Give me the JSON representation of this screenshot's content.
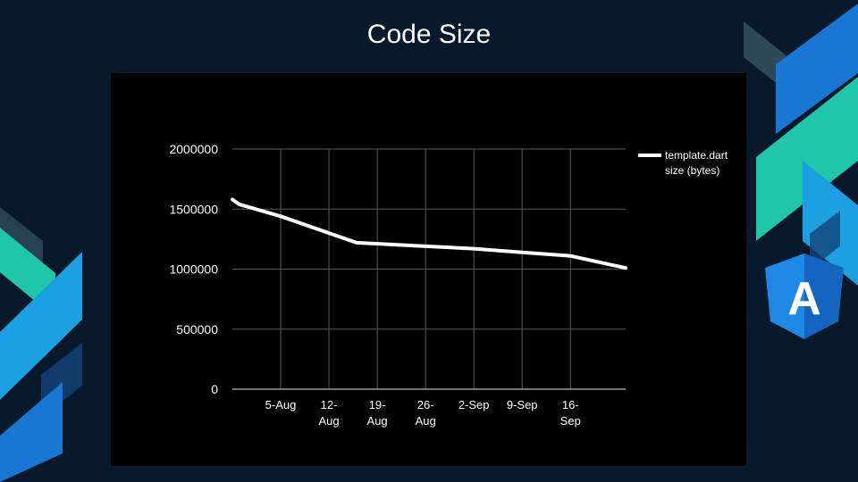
{
  "slide": {
    "title": "Code Size",
    "logo_letter": "A"
  },
  "colors": {
    "background": "#07192a",
    "chart_background": "#000000",
    "line": "#ffffff",
    "grid": "#5a5a5a",
    "accent_blue": "#1976d2",
    "accent_teal": "#1fc6a9",
    "angular_blue": "#1e88e5"
  },
  "chart_data": {
    "type": "line",
    "title": "",
    "xlabel": "",
    "ylabel": "",
    "ylim": [
      0,
      2000000
    ],
    "yticks": [
      0,
      500000,
      1000000,
      1500000,
      2000000
    ],
    "ytick_labels": [
      "0",
      "500000",
      "1000000",
      "1500000",
      "2000000"
    ],
    "xlim": [
      "2017-07-29",
      "2017-09-24"
    ],
    "xticks": [
      {
        "date": "2017-08-05",
        "label": [
          "5-Aug"
        ]
      },
      {
        "date": "2017-08-12",
        "label": [
          "12-",
          "Aug"
        ]
      },
      {
        "date": "2017-08-19",
        "label": [
          "19-",
          "Aug"
        ]
      },
      {
        "date": "2017-08-26",
        "label": [
          "26-",
          "Aug"
        ]
      },
      {
        "date": "2017-09-02",
        "label": [
          "2-Sep"
        ]
      },
      {
        "date": "2017-09-09",
        "label": [
          "9-Sep"
        ]
      },
      {
        "date": "2017-09-16",
        "label": [
          "16-",
          "Sep"
        ]
      }
    ],
    "grid": true,
    "legend_position": "right",
    "series": [
      {
        "name": "template.dart size (bytes)",
        "legend_lines": [
          "template.dart",
          "size (bytes)"
        ],
        "points": [
          {
            "x": "2017-07-29",
            "y": 1580000
          },
          {
            "x": "2017-07-30",
            "y": 1540000
          },
          {
            "x": "2017-08-05",
            "y": 1440000
          },
          {
            "x": "2017-08-16",
            "y": 1220000
          },
          {
            "x": "2017-08-26",
            "y": 1190000
          },
          {
            "x": "2017-09-02",
            "y": 1170000
          },
          {
            "x": "2017-09-09",
            "y": 1140000
          },
          {
            "x": "2017-09-16",
            "y": 1110000
          },
          {
            "x": "2017-09-24",
            "y": 1010000
          }
        ]
      }
    ]
  }
}
